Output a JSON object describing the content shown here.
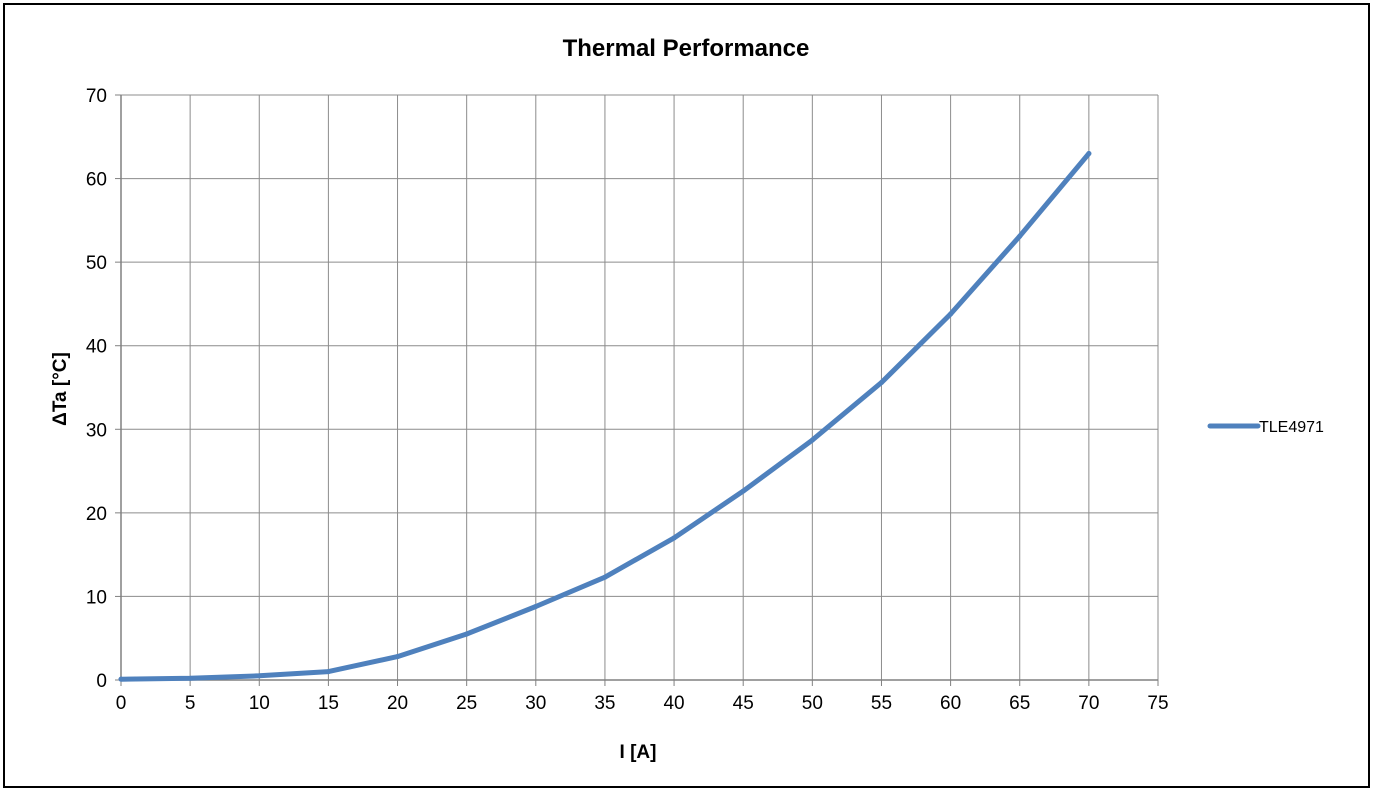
{
  "chart_data": {
    "type": "line",
    "title": "Thermal Performance",
    "xlabel": "I [A]",
    "ylabel": "ΔTa [°C]",
    "xlim": [
      0,
      75
    ],
    "ylim": [
      0,
      70
    ],
    "x_ticks": [
      0,
      5,
      10,
      15,
      20,
      25,
      30,
      35,
      40,
      45,
      50,
      55,
      60,
      65,
      70,
      75
    ],
    "y_ticks": [
      0,
      10,
      20,
      30,
      40,
      50,
      60,
      70
    ],
    "grid": true,
    "legend_position": "right",
    "series": [
      {
        "name": "TLE4971",
        "color": "#4F81BD",
        "x": [
          0,
          5,
          10,
          15,
          20,
          25,
          30,
          35,
          40,
          45,
          50,
          55,
          60,
          65,
          70
        ],
        "y": [
          0.1,
          0.2,
          0.5,
          1.0,
          2.8,
          5.5,
          8.8,
          12.3,
          17.0,
          22.6,
          28.7,
          35.6,
          43.8,
          53.1,
          63.0
        ]
      }
    ]
  }
}
